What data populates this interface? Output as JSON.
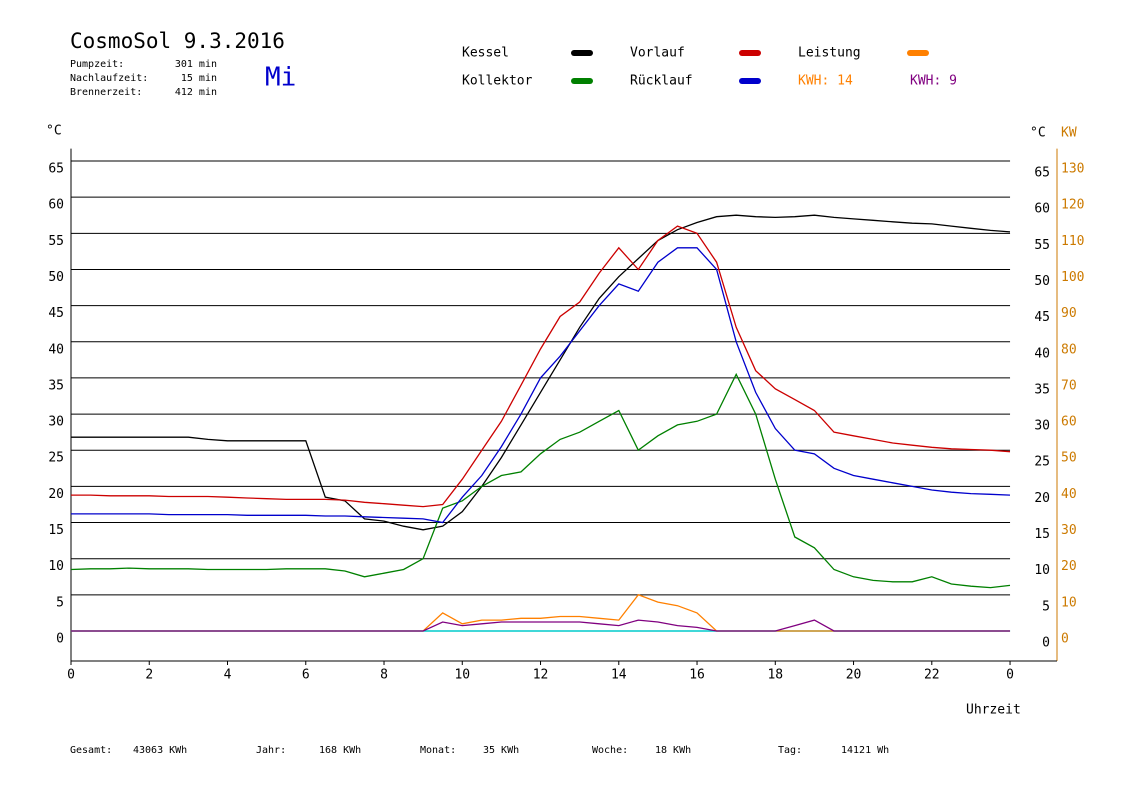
{
  "chart_data": {
    "type": "line",
    "title": "CosmoSol 9.3.2016",
    "day": "Mi",
    "info": [
      {
        "label": "Pumpzeit:",
        "value": "301 min"
      },
      {
        "label": "Nachlaufzeit:",
        "value": "15 min"
      },
      {
        "label": "Brennerzeit:",
        "value": "412 min"
      }
    ],
    "y_label": "°C",
    "y2_label": "°C",
    "y2_unit": "KW",
    "x_label": "Uhrzeit",
    "x": [
      0,
      0.5,
      1,
      1.5,
      2,
      2.5,
      3,
      3.5,
      4,
      4.5,
      5,
      5.5,
      6,
      6.5,
      7,
      7.5,
      8,
      8.5,
      9,
      9.5,
      10,
      10.5,
      11,
      11.5,
      12,
      12.5,
      13,
      13.5,
      14,
      14.5,
      15,
      15.5,
      16,
      16.5,
      17,
      17.5,
      18,
      18.5,
      19,
      19.5,
      20,
      20.5,
      21,
      21.5,
      22,
      22.5,
      23,
      23.5,
      24
    ],
    "series": [
      {
        "name": "Kessel",
        "color": "#000000",
        "values": [
          26.8,
          26.8,
          26.8,
          26.8,
          26.8,
          26.8,
          26.8,
          26.5,
          26.3,
          26.3,
          26.3,
          26.3,
          26.3,
          18.5,
          18,
          15.5,
          15.2,
          14.5,
          14,
          14.5,
          16.5,
          20,
          24,
          28.5,
          33,
          37.5,
          42,
          46,
          49,
          51.5,
          54,
          55.5,
          56.5,
          57.3,
          57.5,
          57.3,
          57.2,
          57.3,
          57.5,
          57.2,
          57,
          56.8,
          56.6,
          56.4,
          56.3,
          56,
          55.7,
          55.4,
          55.2
        ]
      },
      {
        "name": "Kollektor",
        "color": "#008000",
        "values": [
          8.5,
          8.6,
          8.6,
          8.7,
          8.6,
          8.6,
          8.6,
          8.5,
          8.5,
          8.5,
          8.5,
          8.6,
          8.6,
          8.6,
          8.3,
          7.5,
          8,
          8.5,
          10,
          17,
          18,
          20,
          21.5,
          22,
          24.5,
          26.5,
          27.5,
          29,
          30.5,
          25,
          27,
          28.5,
          29,
          30,
          35.5,
          30,
          21,
          13,
          11.5,
          8.5,
          7.5,
          7,
          6.8,
          6.8,
          7.5,
          6.5,
          6.2,
          6,
          6.3
        ]
      },
      {
        "name": "Vorlauf",
        "color": "#cc0000",
        "values": [
          18.8,
          18.8,
          18.7,
          18.7,
          18.7,
          18.6,
          18.6,
          18.6,
          18.5,
          18.4,
          18.3,
          18.2,
          18.2,
          18.2,
          18.1,
          17.8,
          17.6,
          17.4,
          17.2,
          17.5,
          21,
          25,
          29,
          34,
          39,
          43.5,
          45.5,
          49.5,
          53,
          50,
          54,
          56,
          55,
          51,
          42,
          36,
          33.5,
          32,
          30.5,
          27.5,
          27,
          26.5,
          26,
          25.7,
          25.4,
          25.2,
          25.1,
          25,
          24.8
        ]
      },
      {
        "name": "Rücklauf",
        "color": "#0000cc",
        "values": [
          16.2,
          16.2,
          16.2,
          16.2,
          16.2,
          16.1,
          16.1,
          16.1,
          16.1,
          16,
          16,
          16,
          16,
          15.9,
          15.9,
          15.8,
          15.7,
          15.6,
          15.5,
          15,
          18.5,
          21.5,
          25.5,
          30,
          35,
          38,
          41.5,
          45,
          48,
          47,
          51,
          53,
          53,
          50,
          40,
          33,
          28,
          25,
          24.5,
          22.5,
          21.5,
          21,
          20.5,
          20,
          19.5,
          19.2,
          19,
          18.9,
          18.8
        ]
      },
      {
        "name": "Leistung",
        "color": "#ff8000",
        "axis": "y2",
        "kwh": "KWH: 14",
        "values": [
          0,
          0,
          0,
          0,
          0,
          0,
          0,
          0,
          0,
          0,
          0,
          0,
          0,
          0,
          0,
          0,
          0,
          0,
          0,
          5,
          2,
          3,
          3,
          3.5,
          3.5,
          4,
          4,
          3.5,
          3,
          10,
          8,
          7,
          5,
          0,
          0,
          0,
          0,
          0,
          0,
          0,
          0,
          0,
          0,
          0,
          0,
          0,
          0,
          0,
          0
        ]
      },
      {
        "name": "KWH: 9",
        "color": "#800080",
        "axis": "y2",
        "values": [
          0,
          0,
          0,
          0,
          0,
          0,
          0,
          0,
          0,
          0,
          0,
          0,
          0,
          0,
          0,
          0,
          0,
          0,
          0,
          2.5,
          1.5,
          2,
          2.5,
          2.5,
          2.5,
          2.5,
          2.5,
          2,
          1.5,
          3,
          2.5,
          1.5,
          1,
          0,
          0,
          0,
          0,
          1.5,
          3,
          0,
          0,
          0,
          0,
          0,
          0,
          0,
          0,
          0,
          0
        ]
      }
    ],
    "xlim": [
      0,
      25.2
    ],
    "xticks": [
      0,
      2,
      4,
      6,
      8,
      10,
      12,
      14,
      16,
      18,
      20,
      22,
      {
        "value": 24,
        "label": "0"
      }
    ],
    "ylim": [
      -4.15,
      68.1
    ],
    "yticks": [
      0,
      5,
      10,
      15,
      20,
      25,
      30,
      35,
      40,
      45,
      50,
      55,
      60,
      65
    ],
    "y2lim": [
      -8.3,
      136.2
    ],
    "y2ticks": [
      0,
      10,
      20,
      30,
      40,
      50,
      60,
      70,
      80,
      90,
      100,
      110,
      120,
      130
    ],
    "grid": true,
    "footer": [
      {
        "label": "Gesamt:",
        "value": "43063 KWh"
      },
      {
        "label": "Jahr:",
        "value": "168 KWh"
      },
      {
        "label": "Monat:",
        "value": "35 KWh"
      },
      {
        "label": "Woche:",
        "value": "18 KWh"
      },
      {
        "label": "Tag:",
        "value": "14121 Wh"
      }
    ]
  }
}
